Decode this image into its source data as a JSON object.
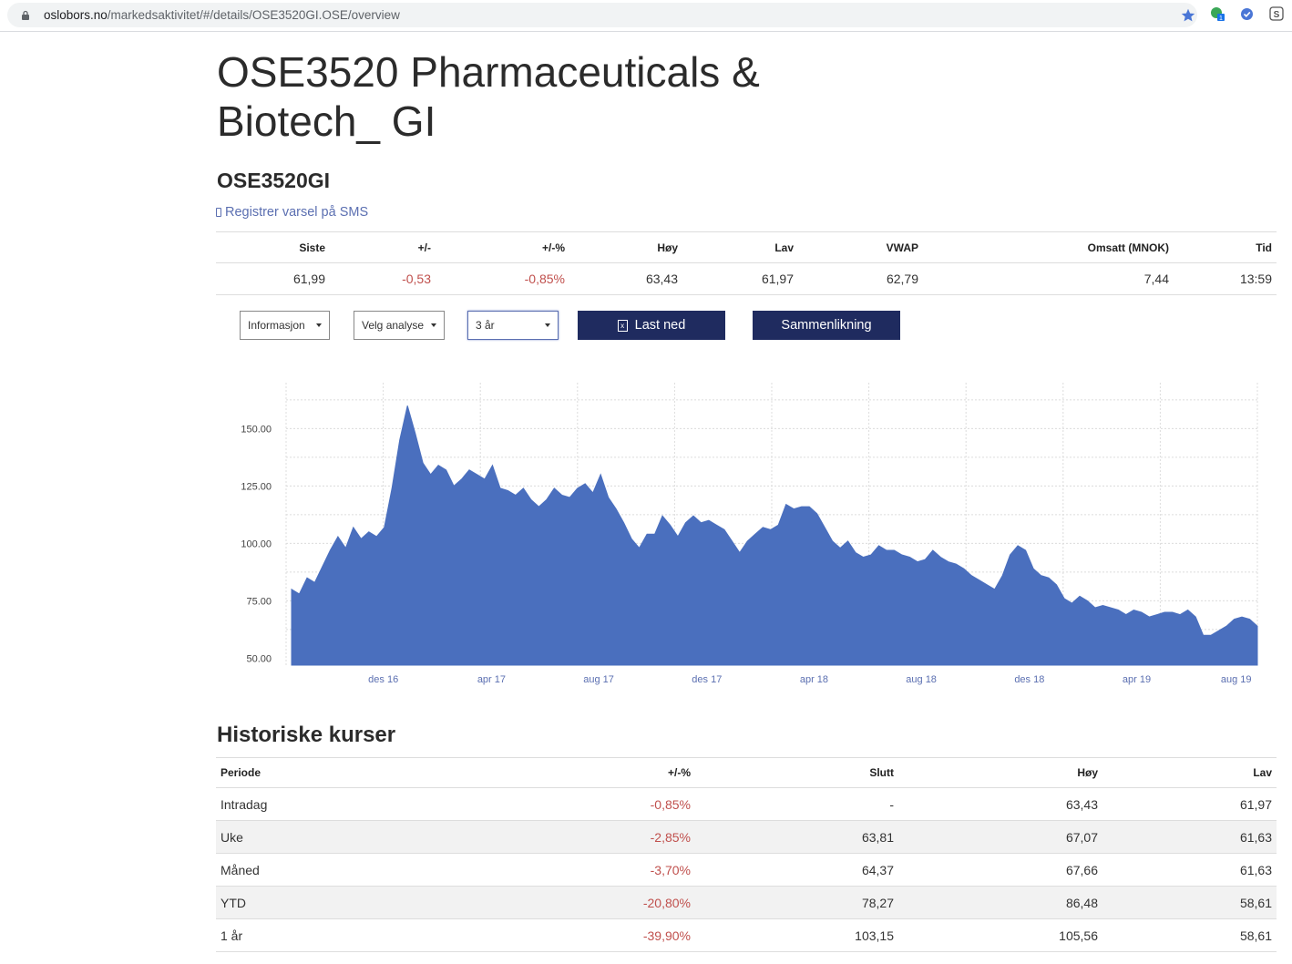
{
  "browser": {
    "url_domain": "oslobors.no",
    "url_path": "/markedsaktivitet/#/details/OSE3520GI.OSE/overview",
    "extension_badge": "1"
  },
  "header": {
    "title": "OSE3520 Pharmaceuticals & Biotech_ GI",
    "ticker": "OSE3520GI",
    "sms_link": "Registrer varsel på SMS"
  },
  "quote": {
    "headers": [
      "Siste",
      "+/-",
      "+/-%",
      "Høy",
      "Lav",
      "VWAP",
      "Omsatt (MNOK)",
      "Tid"
    ],
    "values": [
      "61,99",
      "-0,53",
      "-0,85%",
      "63,43",
      "61,97",
      "62,79",
      "7,44",
      "13:59"
    ]
  },
  "controls": {
    "info_dropdown": "Informasjon",
    "analysis_dropdown": "Velg analyse",
    "period_dropdown": "3 år",
    "download_button": "Last ned",
    "compare_button": "Sammenlikning"
  },
  "colors": {
    "area": "#4a6fbe",
    "button": "#1f2b5f",
    "negative": "#c0504d",
    "link": "#5b6fb1"
  },
  "chart_data": {
    "type": "area",
    "x_tick_labels": [
      "des 16",
      "apr 17",
      "aug 17",
      "des 17",
      "apr 18",
      "aug 18",
      "des 18",
      "apr 19",
      "aug 19"
    ],
    "x_tick_positions": [
      0.095,
      0.207,
      0.318,
      0.43,
      0.541,
      0.652,
      0.764,
      0.875,
      0.978
    ],
    "y_tick_labels": [
      "150.00",
      "125.00",
      "100.00",
      "75.00",
      "50.00"
    ],
    "y_ticks": [
      150,
      125,
      100,
      75,
      50
    ],
    "ylim": [
      47,
      170
    ],
    "x_range": [
      "aug 16",
      "aug 19"
    ],
    "grid": true,
    "series": [
      {
        "values": [
          80,
          78,
          85,
          83,
          90,
          97,
          103,
          98,
          107,
          102,
          105,
          103,
          107,
          124,
          145,
          160,
          148,
          135,
          130,
          134,
          132,
          125,
          128,
          132,
          130,
          128,
          134,
          124,
          123,
          121,
          124,
          119,
          116,
          119,
          124,
          121,
          120,
          124,
          126,
          122,
          130,
          120,
          115,
          109,
          102,
          98,
          104,
          104,
          112,
          108,
          103,
          109,
          112,
          109,
          110,
          108,
          106,
          101,
          96,
          101,
          104,
          107,
          106,
          108,
          117,
          115,
          116,
          116,
          113,
          107,
          101,
          98,
          101,
          96,
          94,
          95,
          99,
          97,
          97,
          95,
          94,
          92,
          93,
          97,
          94,
          92,
          91,
          89,
          86,
          84,
          82,
          80,
          86,
          95,
          99,
          97,
          89,
          86,
          85,
          82,
          76,
          74,
          77,
          75,
          72,
          73,
          72,
          71,
          69,
          71,
          70,
          68,
          69,
          70,
          70,
          69,
          71,
          68,
          60,
          60,
          62,
          64,
          67,
          68,
          67,
          64
        ]
      }
    ]
  },
  "history": {
    "title": "Historiske kurser",
    "headers": [
      "Periode",
      "+/-%",
      "Slutt",
      "Høy",
      "Lav"
    ],
    "rows": [
      [
        "Intradag",
        "-0,85%",
        "-",
        "63,43",
        "61,97"
      ],
      [
        "Uke",
        "-2,85%",
        "63,81",
        "67,07",
        "61,63"
      ],
      [
        "Måned",
        "-3,70%",
        "64,37",
        "67,66",
        "61,63"
      ],
      [
        "YTD",
        "-20,80%",
        "78,27",
        "86,48",
        "58,61"
      ],
      [
        "1 år",
        "-39,90%",
        "103,15",
        "105,56",
        "58,61"
      ]
    ]
  }
}
